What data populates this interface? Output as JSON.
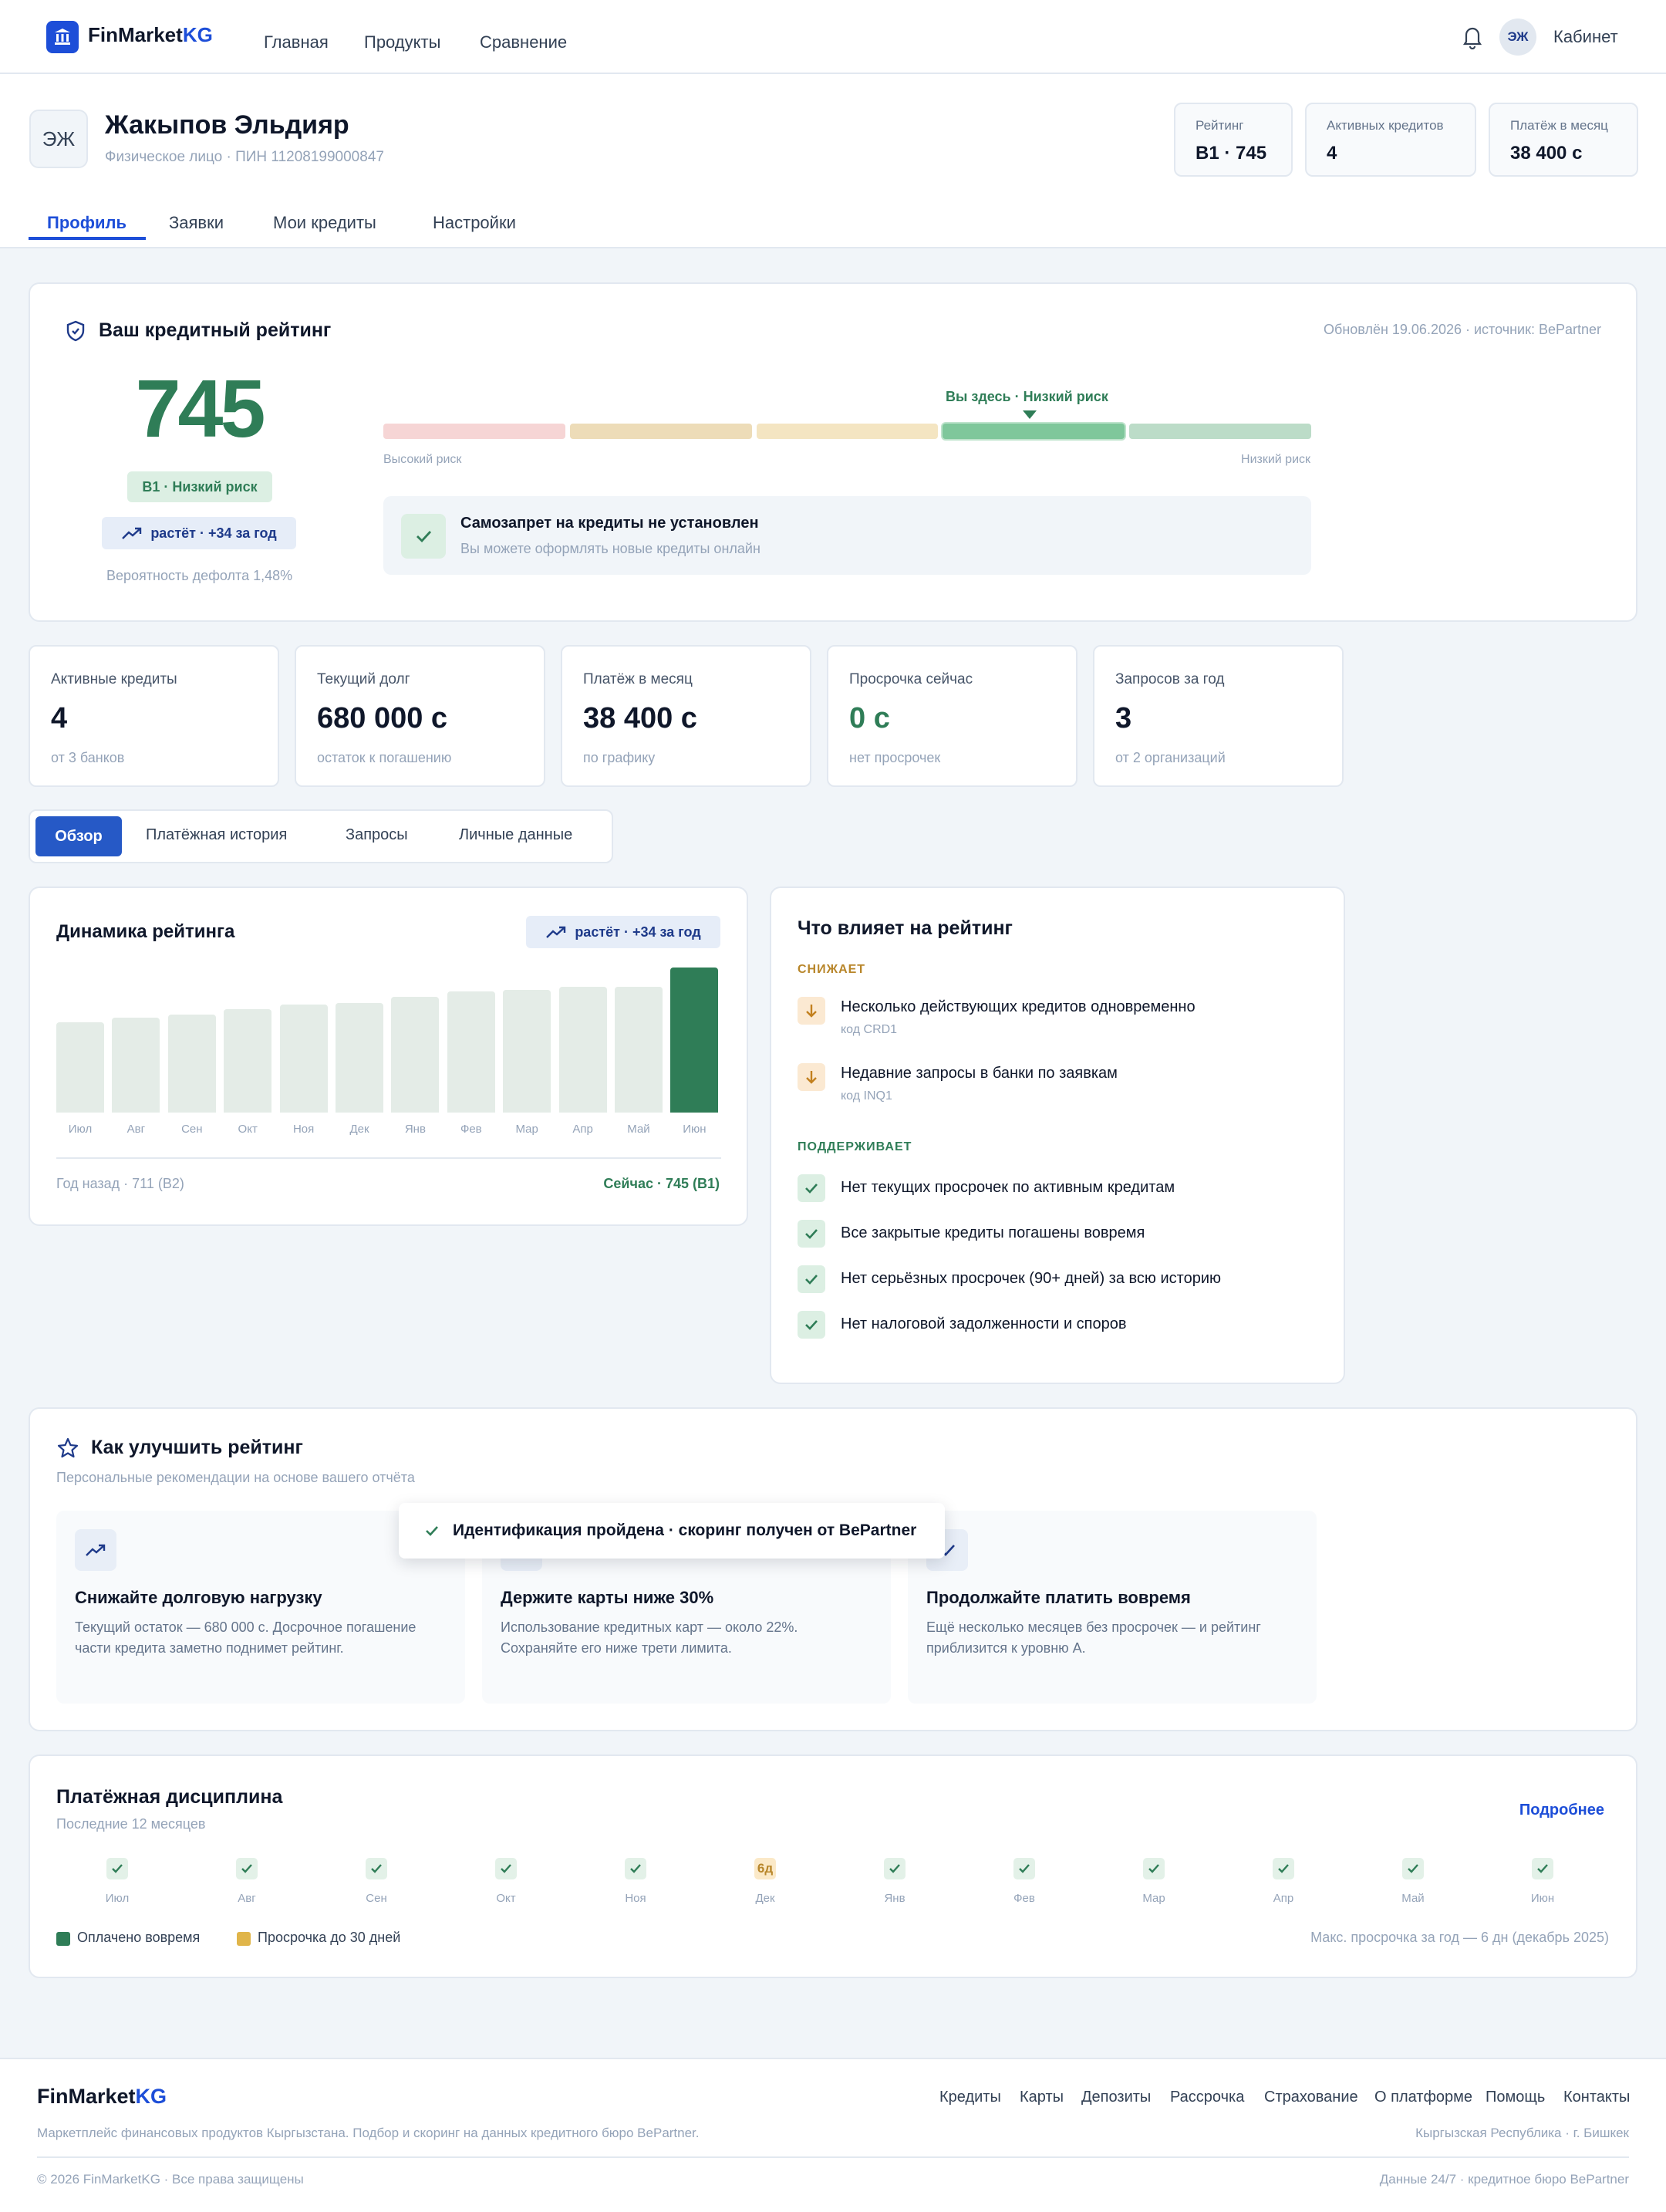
{
  "header": {
    "brand_a": "FinMarket",
    "brand_b": "KG",
    "nav": [
      "Главная",
      "Продукты",
      "Сравнение"
    ],
    "avatar": "ЭЖ",
    "cabinet": "Кабинет"
  },
  "profile": {
    "initials": "ЭЖ",
    "name": "Жакыпов Эльдияр",
    "sub": "Физическое лицо · ПИН 11208199000847",
    "stats": [
      {
        "label": "Рейтинг",
        "value": "B1 · 745"
      },
      {
        "label": "Активных кредитов",
        "value": "4"
      },
      {
        "label": "Платёж в месяц",
        "value": "38 400 с"
      }
    ],
    "tabs": [
      "Профиль",
      "Заявки",
      "Мои кредиты",
      "Настройки"
    ]
  },
  "rating": {
    "title": "Ваш кредитный рейтинг",
    "updated": "Обновлён 19.06.2026 · источник: BePartner",
    "score": "745",
    "grade": "B1 · Низкий риск",
    "trend": "растёт · +34 за год",
    "default_prob": "Вероятность дефолта 1,48%",
    "marker": "Вы здесь · Низкий риск",
    "scale_left": "Высокий риск",
    "scale_right": "Низкий риск",
    "scale_colors": [
      "#f6d5d5",
      "#eddcb8",
      "#f4e5c2",
      "#7fc79b",
      "#bcdcc8"
    ],
    "scale_active": 3,
    "selfban_title": "Самозапрет на кредиты не установлен",
    "selfban_sub": "Вы можете оформлять новые кредиты онлайн"
  },
  "kpis": [
    {
      "label": "Активные кредиты",
      "value": "4",
      "sub": "от 3 банков"
    },
    {
      "label": "Текущий долг",
      "value": "680 000 с",
      "sub": "остаток к погашению"
    },
    {
      "label": "Платёж в месяц",
      "value": "38 400 с",
      "sub": "по графику"
    },
    {
      "label": "Просрочка сейчас",
      "value": "0 с",
      "sub": "нет просрочек",
      "color": "#2f7d57"
    },
    {
      "label": "Запросов за год",
      "value": "3",
      "sub": "от 2 организаций"
    }
  ],
  "section_tabs": [
    "Обзор",
    "Платёжная история",
    "Запросы",
    "Личные данные"
  ],
  "dynamics": {
    "title": "Динамика рейтинга",
    "trend": "растёт · +34 за год",
    "footer_left": "Год назад · 711 (B2)",
    "footer_right": "Сейчас · 745 (B1)"
  },
  "chart_data": {
    "type": "bar",
    "categories": [
      "Июл",
      "Авг",
      "Сен",
      "Окт",
      "Ноя",
      "Дек",
      "Янв",
      "Фев",
      "Мар",
      "Апр",
      "Май",
      "Июн"
    ],
    "values": [
      711,
      714,
      716,
      719,
      722,
      723,
      727,
      730,
      731,
      733,
      733,
      745
    ],
    "title": "Динамика рейтинга",
    "ylim": [
      690,
      745
    ],
    "highlight_color": "#2f7d57",
    "bar_color": "#e4ece7"
  },
  "factors": {
    "title": "Что влияет на рейтинг",
    "neg_head": "СНИЖАЕТ",
    "neg": [
      {
        "text": "Несколько действующих кредитов одновременно",
        "code": "код CRD1"
      },
      {
        "text": "Недавние запросы в банки по заявкам",
        "code": "код INQ1"
      }
    ],
    "pos_head": "ПОДДЕРЖИВАЕТ",
    "pos": [
      "Нет текущих просрочек по активным кредитам",
      "Все закрытые кредиты погашены вовремя",
      "Нет серьёзных просрочек (90+ дней) за всю историю",
      "Нет налоговой задолженности и споров"
    ]
  },
  "improve": {
    "title": "Как улучшить рейтинг",
    "sub": "Персональные рекомендации на основе вашего отчёта",
    "toast": "Идентификация пройдена · скоринг получен от BePartner",
    "cards": [
      {
        "title": "Снижайте долговую нагрузку",
        "text": "Текущий остаток — 680 000 с. Досрочное погашение части кредита заметно поднимет рейтинг."
      },
      {
        "title": "Держите карты ниже 30%",
        "text": "Использование кредитных карт — около 22%. Сохраняйте его ниже трети лимита."
      },
      {
        "title": "Продолжайте платить вовремя",
        "text": "Ещё несколько месяцев без просрочек — и рейтинг приблизится к уровню А."
      }
    ]
  },
  "discipline": {
    "title": "Платёжная дисциплина",
    "sub": "Последние 12 месяцев",
    "more": "Подробнее",
    "months": [
      {
        "m": "Июл",
        "s": "ok"
      },
      {
        "m": "Авг",
        "s": "ok"
      },
      {
        "m": "Сен",
        "s": "ok"
      },
      {
        "m": "Окт",
        "s": "ok"
      },
      {
        "m": "Ноя",
        "s": "ok"
      },
      {
        "m": "Дек",
        "s": "late",
        "label": "6д"
      },
      {
        "m": "Янв",
        "s": "ok"
      },
      {
        "m": "Фев",
        "s": "ok"
      },
      {
        "m": "Мар",
        "s": "ok"
      },
      {
        "m": "Апр",
        "s": "ok"
      },
      {
        "m": "Май",
        "s": "ok"
      },
      {
        "m": "Июн",
        "s": "ok"
      }
    ],
    "legend_ok": "Оплачено вовремя",
    "legend_late": "Просрочка до 30 дней",
    "max_note": "Макс. просрочка за год — 6 дн (декабрь 2025)",
    "ok_color": "#2f7d57",
    "late_color": "#e0b54a"
  },
  "footer": {
    "brand_a": "FinMarket",
    "brand_b": "KG",
    "links": [
      "Кредиты",
      "Карты",
      "Депозиты",
      "Рассрочка",
      "Страхование",
      "О платформе",
      "Помощь",
      "Контакты"
    ],
    "desc": "Маркетплейс финансовых продуктов Кыргызстана. Подбор и скоринг на данных кредитного бюро BePartner.",
    "region": "Кыргызская Республика · г. Бишкек",
    "copy": "© 2026 FinMarketKG · Все права защищены",
    "data": "Данные 24/7 · кредитное бюро BePartner"
  }
}
